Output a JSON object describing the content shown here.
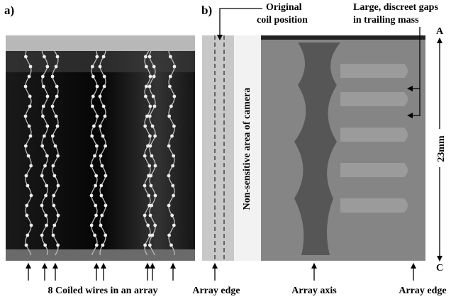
{
  "panel_a": {
    "label": "a)",
    "caption": "8 Coiled wires in an array"
  },
  "panel_b": {
    "label": "b)",
    "coil_annotation": [
      "Original",
      "coil position"
    ],
    "gap_annotation": [
      "Large, discreet gaps",
      "in trailing mass"
    ],
    "scale": {
      "top": "A",
      "bottom": "C",
      "length": "23mm"
    },
    "non_sensitive": "Non-sensitive area of camera",
    "captions": [
      "Array edge",
      "Array axis",
      "Array edge"
    ]
  }
}
